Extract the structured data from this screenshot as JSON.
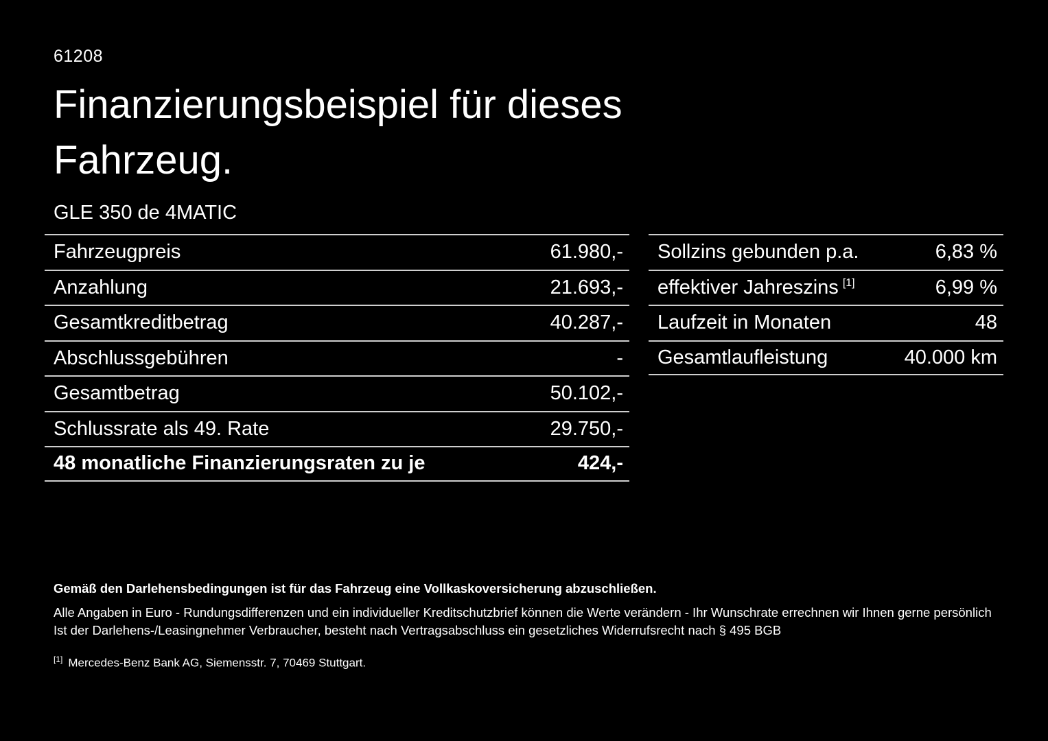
{
  "header": {
    "code": "61208",
    "title_line1": "Finanzierungsbeispiel für dieses",
    "title_line2": "Fahrzeug.",
    "vehicle_model": "GLE 350 de 4MATIC"
  },
  "financing_table": {
    "rows": [
      {
        "label": "Fahrzeugpreis",
        "value": "61.980,-"
      },
      {
        "label": "Anzahlung",
        "value": "21.693,-"
      },
      {
        "label": "Gesamtkreditbetrag",
        "value": "40.287,-"
      },
      {
        "label": "Abschlussgebühren",
        "value": "-"
      },
      {
        "label": "Gesamtbetrag",
        "value": "50.102,-"
      },
      {
        "label": "Schlussrate als 49. Rate",
        "value": "29.750,-"
      },
      {
        "label": "48 monatliche Finanzierungsraten zu je",
        "value": "424,-"
      }
    ]
  },
  "conditions_table": {
    "rows": [
      {
        "label": "Sollzins gebunden p.a.",
        "value": "6,83 %"
      },
      {
        "label": "effektiver Jahreszins",
        "footnote_marker": "[1]",
        "value": "6,99 %"
      },
      {
        "label": "Laufzeit in Monaten",
        "value": "48"
      },
      {
        "label": "Gesamtlaufleistung",
        "value": "40.000 km"
      }
    ]
  },
  "footer": {
    "bold_note": "Gemäß den Darlehensbedingungen ist für das Fahrzeug eine Vollkaskoversicherung abzuschließen.",
    "note_line1": "Alle Angaben in Euro - Rundungsdifferenzen und ein individueller Kreditschutzbrief können die Werte verändern - Ihr Wunschrate errechnen wir Ihnen gerne persönlich",
    "note_line2": "Ist der Darlehens-/Leasingnehmer Verbraucher, besteht nach Vertragsabschluss ein gesetzliches Widerrufsrecht nach § 495 BGB",
    "footnote_marker": "[1]",
    "footnote_text": "Mercedes-Benz Bank AG, Siemensstr. 7, 70469 Stuttgart."
  },
  "colors": {
    "background": "#000000",
    "text": "#ffffff",
    "divider": "#cfcfcf"
  }
}
